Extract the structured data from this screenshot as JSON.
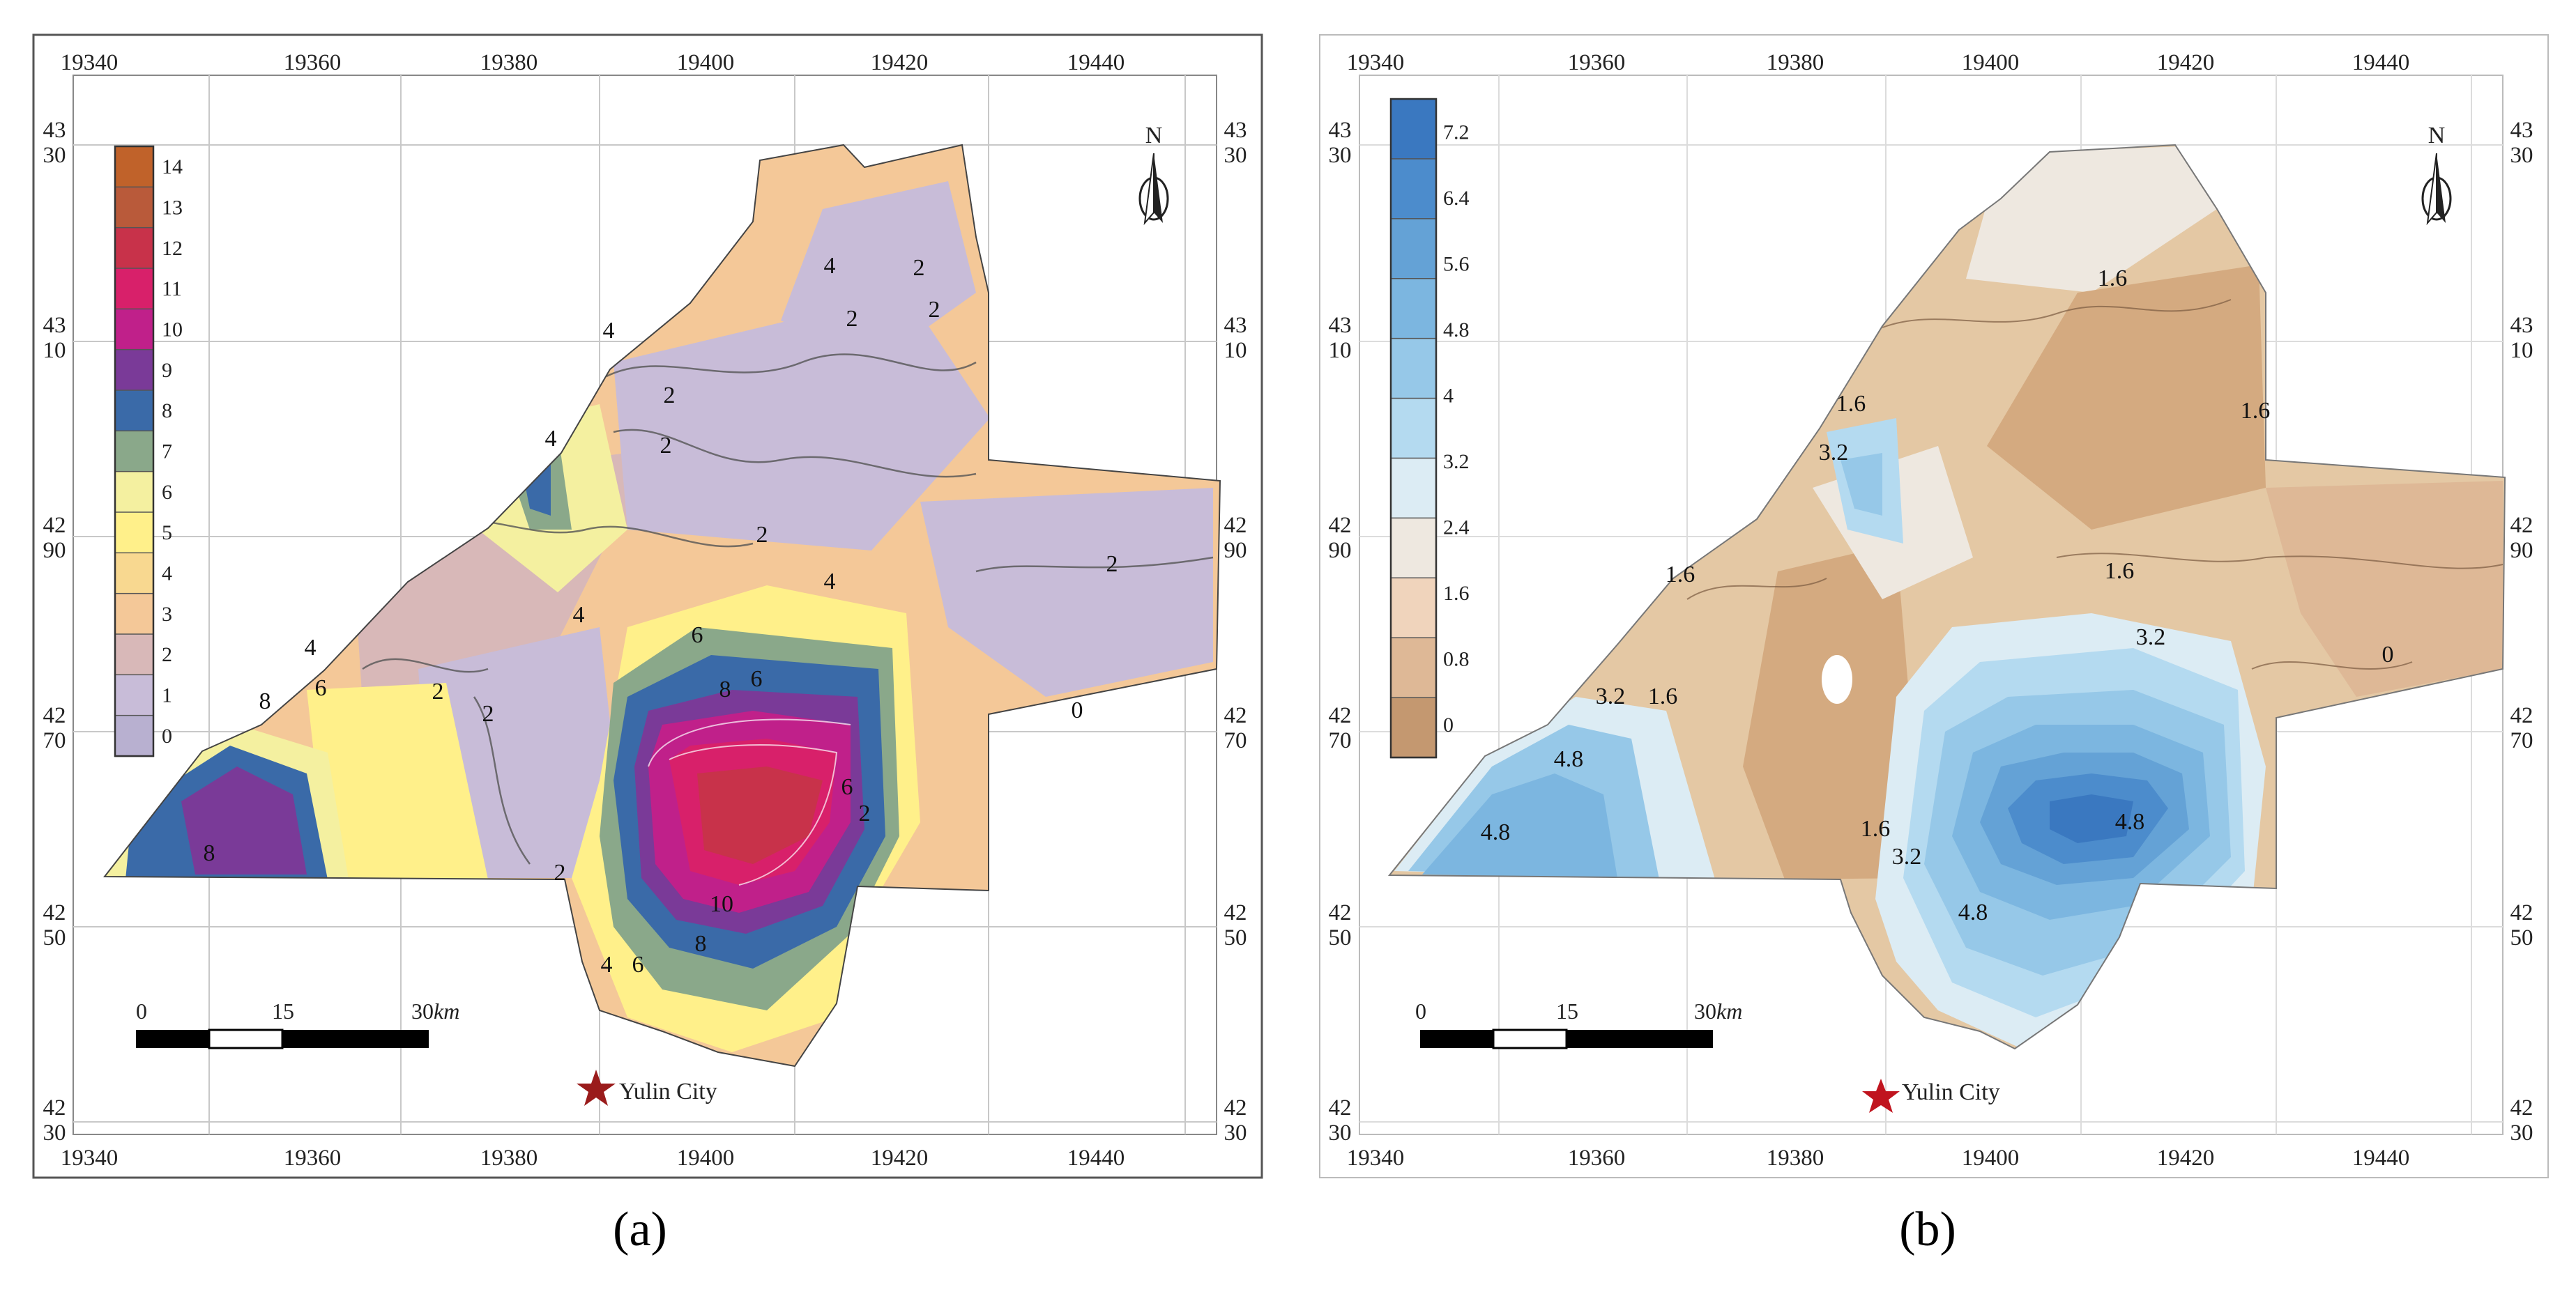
{
  "panel_a": {
    "label": "(a)",
    "x_ticks": [
      "19340",
      "19360",
      "19380",
      "19400",
      "19420",
      "19440"
    ],
    "y_ticks": [
      {
        "l1": "43",
        "l2": "30"
      },
      {
        "l1": "43",
        "l2": "10"
      },
      {
        "l1": "42",
        "l2": "90"
      },
      {
        "l1": "42",
        "l2": "70"
      },
      {
        "l1": "42",
        "l2": "50"
      },
      {
        "l1": "42",
        "l2": "30"
      }
    ],
    "legend_values": [
      "14",
      "13",
      "12",
      "11",
      "10",
      "9",
      "8",
      "7",
      "6",
      "5",
      "4",
      "3",
      "2",
      "1",
      "0"
    ],
    "legend_colors": [
      "#c0622a",
      "#b95a3a",
      "#c8324a",
      "#d8206a",
      "#c0208a",
      "#7a3a98",
      "#3a6aa8",
      "#8aa88a",
      "#f4f0a0",
      "#fff08a",
      "#f8d890",
      "#f4c898",
      "#d8b8b8",
      "#c8bcd8",
      "#b8b0d0"
    ],
    "contour_labels": [
      "4",
      "2",
      "2",
      "4",
      "2",
      "2",
      "4",
      "2",
      "2",
      "4",
      "2",
      "4",
      "6",
      "8",
      "6",
      "4",
      "2",
      "2",
      "6",
      "8",
      "6",
      "8",
      "10",
      "8",
      "6",
      "4",
      "2",
      "2",
      "0"
    ],
    "north": "N",
    "scale": {
      "t0": "0",
      "t1": "15",
      "t2": "30",
      "unit": "km"
    },
    "city": "Yulin City"
  },
  "panel_b": {
    "label": "(b)",
    "x_ticks": [
      "19340",
      "19360",
      "19380",
      "19400",
      "19420",
      "19440"
    ],
    "y_ticks": [
      {
        "l1": "43",
        "l2": "30"
      },
      {
        "l1": "43",
        "l2": "10"
      },
      {
        "l1": "42",
        "l2": "90"
      },
      {
        "l1": "42",
        "l2": "70"
      },
      {
        "l1": "42",
        "l2": "50"
      },
      {
        "l1": "42",
        "l2": "30"
      }
    ],
    "legend_values": [
      "7.2",
      "6.4",
      "5.6",
      "4.8",
      "4",
      "3.2",
      "2.4",
      "1.6",
      "0.8",
      "0"
    ],
    "legend_colors": [
      "#3a78c0",
      "#4c8ccc",
      "#64a2d6",
      "#7cb6e0",
      "#96c8e8",
      "#b4daf0",
      "#dcecf4",
      "#eee8e0",
      "#f0d4bc",
      "#deb896",
      "#c49870"
    ],
    "contour_labels": [
      "1.6",
      "1.6",
      "3.2",
      "1.6",
      "1.6",
      "1.6",
      "3.2",
      "3.2",
      "1.6",
      "0",
      "4.8",
      "4.8",
      "1.6",
      "3.2",
      "4.8",
      "4.8"
    ],
    "north": "N",
    "scale": {
      "t0": "0",
      "t1": "15",
      "t2": "30",
      "unit": "km"
    },
    "city": "Yulin City"
  }
}
